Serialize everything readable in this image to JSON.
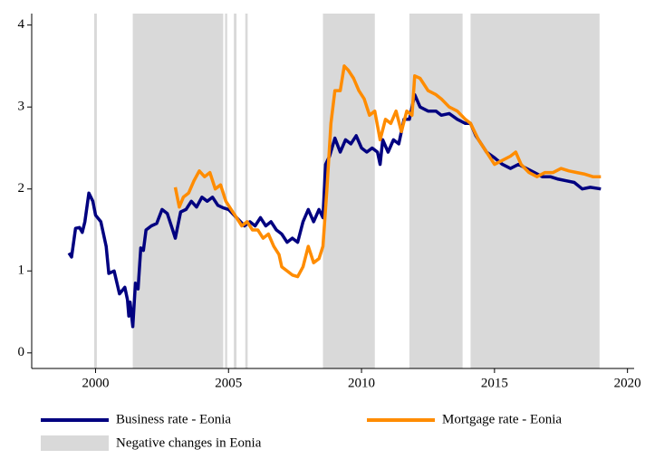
{
  "chart_data": {
    "type": "line",
    "xlim": [
      1997.6,
      2020.25
    ],
    "ylim": [
      -0.19,
      4.14
    ],
    "xticks": [
      2000,
      2005,
      2010,
      2015,
      2020
    ],
    "yticks": [
      0,
      1,
      2,
      3,
      4
    ],
    "grid": false,
    "shaded": {
      "name": "Negative changes in Eonia",
      "color": "#d9d9d9",
      "intervals": [
        [
          1999.95,
          2000.05
        ],
        [
          2001.4,
          2004.8
        ],
        [
          2004.87,
          2004.95
        ],
        [
          2005.2,
          2005.3
        ],
        [
          2005.63,
          2005.72
        ],
        [
          2008.55,
          2010.5
        ],
        [
          2011.8,
          2013.8
        ],
        [
          2014.1,
          2018.95
        ]
      ]
    },
    "series": [
      {
        "name": "Business rate - Eonia",
        "color": "#000080",
        "x": [
          1999.0,
          1999.1,
          1999.25,
          1999.4,
          1999.5,
          1999.6,
          1999.75,
          1999.9,
          2000.0,
          2000.2,
          2000.4,
          2000.5,
          2000.7,
          2000.9,
          2001.1,
          2001.2,
          2001.25,
          2001.3,
          2001.4,
          2001.5,
          2001.6,
          2001.7,
          2001.8,
          2001.9,
          2002.1,
          2002.3,
          2002.5,
          2002.7,
          2002.9,
          2003.0,
          2003.2,
          2003.4,
          2003.6,
          2003.8,
          2004.0,
          2004.2,
          2004.4,
          2004.6,
          2004.8,
          2005.0,
          2005.3,
          2005.6,
          2005.8,
          2006.0,
          2006.2,
          2006.4,
          2006.6,
          2006.8,
          2007.0,
          2007.2,
          2007.4,
          2007.6,
          2007.8,
          2008.0,
          2008.2,
          2008.4,
          2008.55,
          2008.65,
          2008.8,
          2009.0,
          2009.2,
          2009.4,
          2009.6,
          2009.8,
          2010.0,
          2010.2,
          2010.4,
          2010.6,
          2010.7,
          2010.8,
          2011.0,
          2011.2,
          2011.4,
          2011.6,
          2011.8,
          2012.0,
          2012.2,
          2012.5,
          2012.8,
          2013.0,
          2013.3,
          2013.6,
          2013.9,
          2014.1,
          2014.3,
          2014.5,
          2014.7,
          2015.0,
          2015.3,
          2015.6,
          2015.9,
          2016.2,
          2016.5,
          2016.8,
          2017.1,
          2017.4,
          2017.7,
          2018.0,
          2018.3,
          2018.6,
          2019.0
        ],
        "values": [
          1.22,
          1.17,
          1.52,
          1.53,
          1.47,
          1.6,
          1.95,
          1.85,
          1.68,
          1.6,
          1.3,
          0.97,
          1.0,
          0.72,
          0.8,
          0.65,
          0.45,
          0.62,
          0.32,
          0.85,
          0.78,
          1.28,
          1.25,
          1.5,
          1.55,
          1.58,
          1.75,
          1.7,
          1.5,
          1.4,
          1.72,
          1.75,
          1.85,
          1.78,
          1.9,
          1.85,
          1.9,
          1.8,
          1.77,
          1.75,
          1.65,
          1.55,
          1.6,
          1.55,
          1.65,
          1.55,
          1.6,
          1.5,
          1.45,
          1.35,
          1.4,
          1.35,
          1.6,
          1.75,
          1.6,
          1.75,
          1.65,
          2.3,
          2.4,
          2.62,
          2.45,
          2.6,
          2.55,
          2.65,
          2.5,
          2.45,
          2.5,
          2.45,
          2.3,
          2.6,
          2.45,
          2.6,
          2.55,
          2.85,
          2.85,
          3.15,
          3.0,
          2.95,
          2.95,
          2.9,
          2.92,
          2.85,
          2.8,
          2.8,
          2.65,
          2.55,
          2.45,
          2.38,
          2.3,
          2.25,
          2.3,
          2.25,
          2.2,
          2.15,
          2.15,
          2.12,
          2.1,
          2.08,
          2.0,
          2.02,
          2.0
        ]
      },
      {
        "name": "Mortgage rate - Eonia",
        "color": "#ff8c00",
        "x": [
          2003.0,
          2003.15,
          2003.3,
          2003.5,
          2003.7,
          2003.9,
          2004.1,
          2004.3,
          2004.5,
          2004.7,
          2004.9,
          2005.1,
          2005.3,
          2005.5,
          2005.7,
          2005.9,
          2006.1,
          2006.3,
          2006.5,
          2006.7,
          2006.9,
          2007.0,
          2007.2,
          2007.4,
          2007.6,
          2007.8,
          2008.0,
          2008.2,
          2008.4,
          2008.55,
          2008.7,
          2008.85,
          2009.0,
          2009.2,
          2009.35,
          2009.5,
          2009.7,
          2009.9,
          2010.1,
          2010.3,
          2010.5,
          2010.7,
          2010.9,
          2011.1,
          2011.3,
          2011.5,
          2011.7,
          2011.9,
          2012.0,
          2012.2,
          2012.5,
          2012.8,
          2013.0,
          2013.3,
          2013.6,
          2013.9,
          2014.1,
          2014.4,
          2014.7,
          2015.0,
          2015.3,
          2015.6,
          2015.8,
          2016.0,
          2016.3,
          2016.6,
          2016.9,
          2017.2,
          2017.5,
          2017.8,
          2018.1,
          2018.4,
          2018.7,
          2019.0
        ],
        "values": [
          2.02,
          1.78,
          1.9,
          1.95,
          2.1,
          2.22,
          2.15,
          2.2,
          2.0,
          2.05,
          1.85,
          1.75,
          1.65,
          1.55,
          1.6,
          1.5,
          1.5,
          1.4,
          1.45,
          1.3,
          1.2,
          1.05,
          1.0,
          0.95,
          0.93,
          1.05,
          1.3,
          1.1,
          1.15,
          1.3,
          2.0,
          2.8,
          3.2,
          3.2,
          3.5,
          3.45,
          3.35,
          3.2,
          3.1,
          2.9,
          2.95,
          2.6,
          2.85,
          2.8,
          2.95,
          2.7,
          2.95,
          2.9,
          3.38,
          3.35,
          3.2,
          3.15,
          3.1,
          3.0,
          2.95,
          2.85,
          2.8,
          2.6,
          2.45,
          2.3,
          2.35,
          2.4,
          2.45,
          2.3,
          2.2,
          2.15,
          2.2,
          2.2,
          2.25,
          2.22,
          2.2,
          2.18,
          2.15,
          2.15
        ]
      }
    ]
  }
}
